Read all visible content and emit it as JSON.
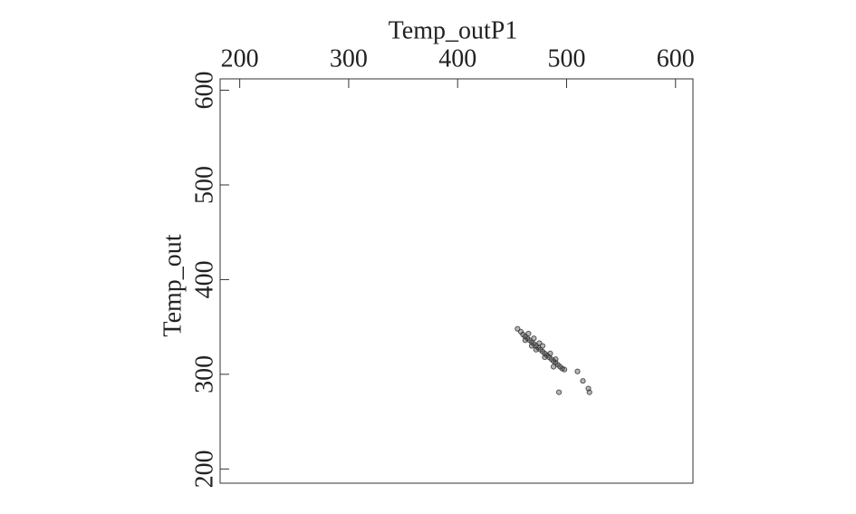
{
  "chart_data": {
    "type": "scatter",
    "x_label": "Temp_outP1",
    "y_label": "Temp_out",
    "x": [
      455,
      458,
      460,
      462,
      464,
      466,
      468,
      470,
      472,
      474,
      476,
      478,
      480,
      482,
      484,
      486,
      488,
      490,
      492,
      494,
      496,
      498,
      465,
      470,
      475,
      478,
      485,
      490,
      462,
      468,
      480,
      510,
      515,
      520,
      521,
      493,
      488,
      472
    ],
    "values": [
      348,
      345,
      342,
      340,
      338,
      336,
      334,
      332,
      330,
      328,
      326,
      324,
      322,
      320,
      318,
      316,
      314,
      312,
      310,
      308,
      306,
      305,
      343,
      338,
      333,
      330,
      322,
      316,
      336,
      330,
      318,
      303,
      293,
      285,
      281,
      281,
      308,
      326
    ],
    "color": "#333333",
    "xlim": [
      182,
      616
    ],
    "xticks": [
      200,
      300,
      400,
      500,
      600
    ],
    "ylim": [
      185,
      612
    ],
    "yticks": [
      200,
      300,
      400,
      500,
      600
    ],
    "grid": false
  }
}
